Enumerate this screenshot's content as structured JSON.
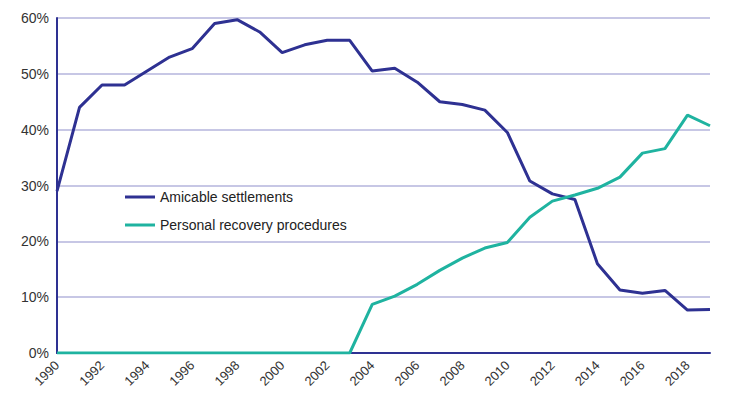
{
  "chart_data": {
    "type": "line",
    "categories": [
      1990,
      null,
      1992,
      null,
      1994,
      null,
      1996,
      null,
      1998,
      null,
      2000,
      null,
      2002,
      null,
      2004,
      null,
      2006,
      null,
      2008,
      null,
      2010,
      null,
      2012,
      null,
      2014,
      null,
      2016,
      null,
      2018,
      null
    ],
    "series": [
      {
        "name": "Amicable settlements",
        "color": "#2e3192",
        "values": [
          29,
          44,
          48,
          48,
          50.5,
          53,
          54.5,
          59,
          59.7,
          57.5,
          53.8,
          55.2,
          56,
          56,
          50.5,
          51,
          48.5,
          45,
          44.5,
          43.5,
          39.5,
          30.8,
          28.5,
          27.5,
          16,
          11.3,
          10.7,
          11.2,
          7.7,
          7.8
        ]
      },
      {
        "name": "Personal recovery procedures",
        "color": "#1fb3a0",
        "values": [
          0,
          0,
          0,
          0,
          0,
          0,
          0,
          0,
          0,
          0,
          0,
          0,
          0,
          0,
          8.7,
          10.2,
          12.3,
          14.8,
          17,
          18.8,
          19.8,
          24.3,
          27.2,
          28.3,
          29.5,
          31.5,
          35.8,
          36.6,
          42.6,
          40.7
        ]
      }
    ],
    "ylim": [
      0,
      60
    ],
    "yticks": [
      {
        "value": 0,
        "label": "0%"
      },
      {
        "value": 10,
        "label": "10%"
      },
      {
        "value": 20,
        "label": "20%"
      },
      {
        "value": 30,
        "label": "30%"
      },
      {
        "value": 40,
        "label": "40%"
      },
      {
        "value": 50,
        "label": "50%"
      },
      {
        "value": 60,
        "label": "60%"
      }
    ],
    "grid": true,
    "legend": "left"
  }
}
